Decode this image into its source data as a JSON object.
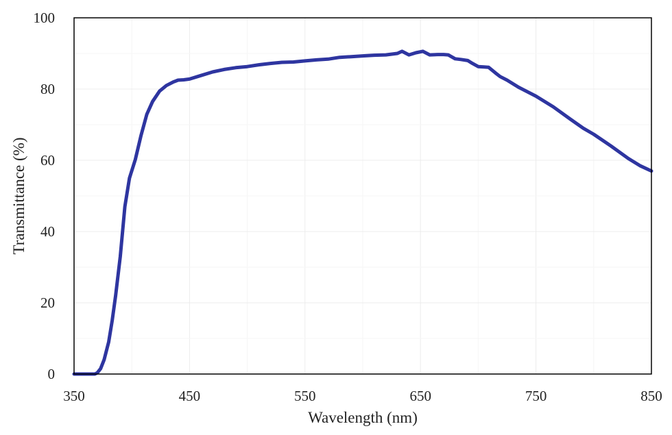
{
  "chart_data": {
    "type": "line",
    "title": "",
    "xlabel": "Wavelength  (nm)",
    "ylabel": "Transmittance  (%)",
    "xlim": [
      350,
      850
    ],
    "ylim": [
      0,
      100
    ],
    "xticks": [
      350,
      450,
      550,
      650,
      750,
      850
    ],
    "yticks": [
      0,
      20,
      40,
      60,
      80,
      100
    ],
    "grid": true,
    "series": [
      {
        "name": "Transmittance",
        "color": "#2e35a0",
        "x": [
          350,
          360,
          368,
          370,
          373,
          376,
          380,
          383,
          386,
          390,
          394,
          398,
          403,
          408,
          413,
          418,
          424,
          430,
          436,
          440,
          445,
          450,
          460,
          470,
          480,
          490,
          500,
          510,
          520,
          530,
          540,
          550,
          560,
          570,
          580,
          590,
          600,
          610,
          620,
          630,
          634,
          640,
          646,
          652,
          658,
          665,
          670,
          674,
          680,
          685,
          691,
          695,
          700,
          705,
          709,
          715,
          719,
          725,
          735,
          750,
          765,
          780,
          791,
          800,
          815,
          830,
          840,
          850
        ],
        "y": [
          0,
          0,
          0,
          0.3,
          1.5,
          4,
          9,
          15,
          22,
          33,
          47,
          55,
          60.2,
          67,
          72.9,
          76.5,
          79.4,
          81,
          82,
          82.5,
          82.6,
          82.8,
          83.8,
          84.8,
          85.5,
          86,
          86.3,
          86.8,
          87.2,
          87.5,
          87.6,
          87.9,
          88.2,
          88.4,
          88.9,
          89.1,
          89.3,
          89.5,
          89.6,
          90,
          90.6,
          89.6,
          90.2,
          90.6,
          89.6,
          89.7,
          89.7,
          89.6,
          88.5,
          88.3,
          88,
          87.2,
          86.3,
          86.2,
          86.1,
          84.5,
          83.5,
          82.5,
          80.5,
          78,
          75,
          71.5,
          69,
          67.3,
          64,
          60.5,
          58.5,
          57
        ]
      }
    ]
  }
}
